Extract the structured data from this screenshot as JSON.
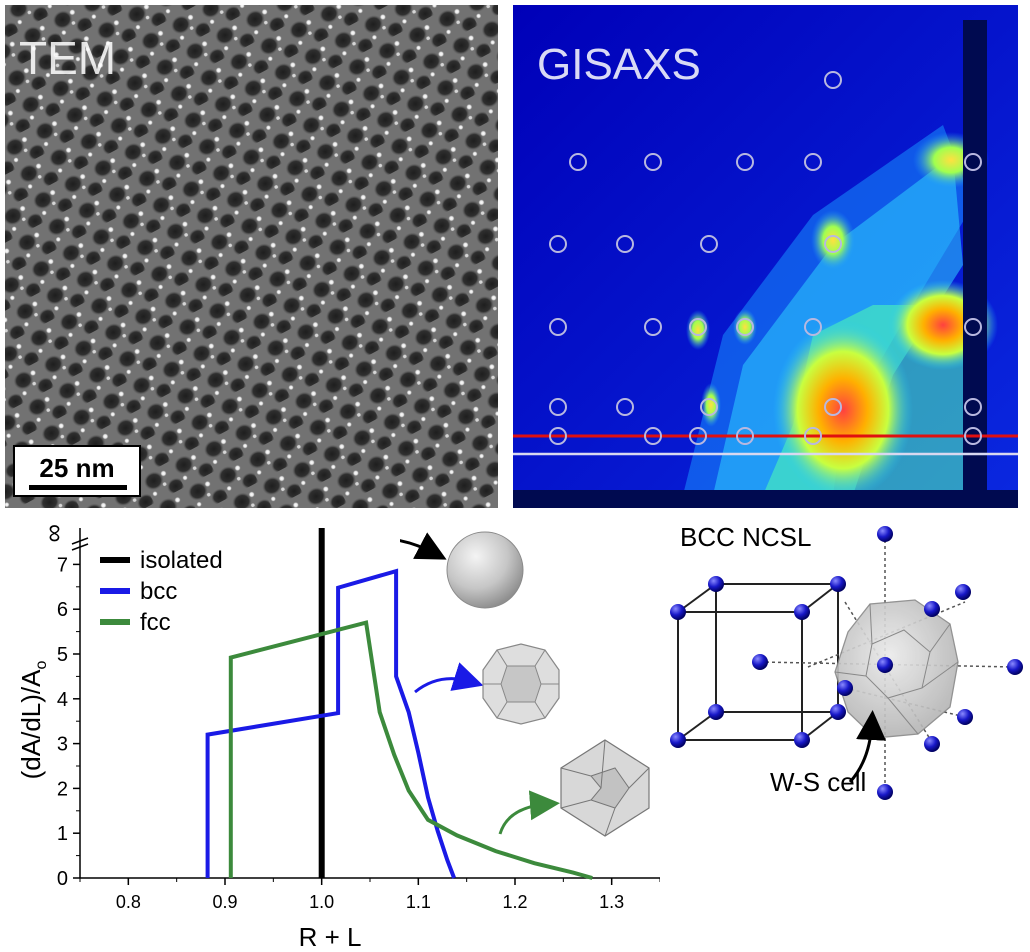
{
  "panels": {
    "tem": {
      "label": "TEM",
      "scalebar": "25 nm"
    },
    "gisaxs": {
      "label": "GISAXS"
    },
    "bcc_ncsl": {
      "title": "BCC NCSL",
      "ws_label": "W-S cell"
    }
  },
  "chart_data": {
    "type": "line",
    "xlabel": "R + L",
    "ylabel": "(dA/dL)/A",
    "ylabel_sub": "o",
    "xlim": [
      0.75,
      1.35
    ],
    "ylim": [
      0,
      7.5
    ],
    "xticks": [
      "0.8",
      "0.9",
      "1.0",
      "1.1",
      "1.2",
      "1.3"
    ],
    "yticks": [
      "0",
      "1",
      "2",
      "3",
      "4",
      "5",
      "6",
      "7"
    ],
    "y_break_label": "∞",
    "legend": {
      "placement": "top-left",
      "entries": [
        "isolated",
        "bcc",
        "fcc"
      ]
    },
    "series": [
      {
        "name": "isolated",
        "color": "#000000",
        "points": [
          [
            1.0,
            0
          ],
          [
            1.0,
            8.2
          ]
        ]
      },
      {
        "name": "bcc",
        "color": "#1a1ae6",
        "points": [
          [
            0.882,
            0
          ],
          [
            0.882,
            3.2
          ],
          [
            1.017,
            3.68
          ],
          [
            1.017,
            6.48
          ],
          [
            1.077,
            6.85
          ],
          [
            1.077,
            4.5
          ],
          [
            1.09,
            3.7
          ],
          [
            1.1,
            2.8
          ],
          [
            1.11,
            1.8
          ],
          [
            1.12,
            1.05
          ],
          [
            1.13,
            0.4
          ],
          [
            1.137,
            0
          ]
        ]
      },
      {
        "name": "fcc",
        "color": "#3c8a3c",
        "points": [
          [
            0.906,
            0
          ],
          [
            0.906,
            4.92
          ],
          [
            1.046,
            5.7
          ],
          [
            1.06,
            3.7
          ],
          [
            1.075,
            2.75
          ],
          [
            1.09,
            1.95
          ],
          [
            1.11,
            1.3
          ],
          [
            1.14,
            0.95
          ],
          [
            1.18,
            0.6
          ],
          [
            1.22,
            0.33
          ],
          [
            1.26,
            0.12
          ],
          [
            1.28,
            0
          ]
        ]
      }
    ]
  },
  "colors": {
    "tem_background": "#6a6a6a",
    "gisaxs_background": "#0a14c8",
    "guide_line_red": "#e01010",
    "guide_line_white": "#d8d8f0",
    "sphere_gray": "#cfcfcf",
    "atom_blue": "#1818c8"
  }
}
